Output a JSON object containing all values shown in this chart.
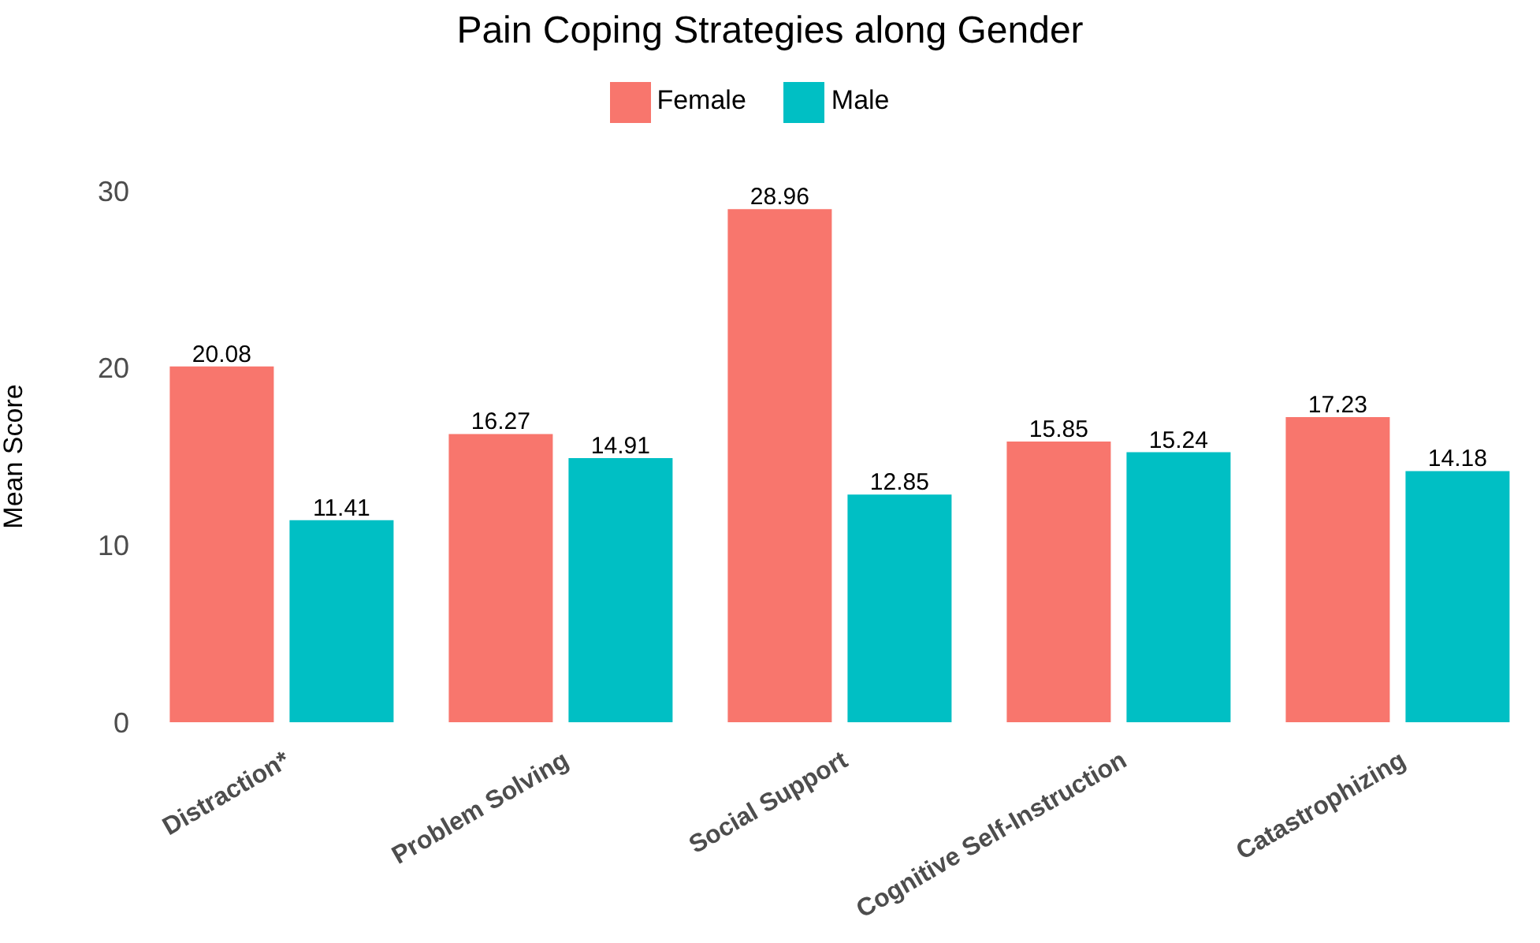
{
  "chart_data": {
    "type": "bar",
    "title": "Pain Coping Strategies along Gender",
    "ylabel": "Mean Score",
    "categories": [
      "Distraction*",
      "Problem Solving",
      "Social Support",
      "Cognitive Self-Instruction",
      "Catastrophizing"
    ],
    "series": [
      {
        "name": "Female",
        "color": "#f8766d",
        "values": [
          20.08,
          16.27,
          28.96,
          15.85,
          17.23
        ]
      },
      {
        "name": "Male",
        "color": "#00bfc4",
        "values": [
          11.41,
          14.91,
          12.85,
          15.24,
          14.18
        ]
      }
    ],
    "ylim": [
      0,
      30
    ],
    "yticks": [
      0,
      10,
      20,
      30
    ],
    "grid": false,
    "legend": "top",
    "data_labels": true
  }
}
